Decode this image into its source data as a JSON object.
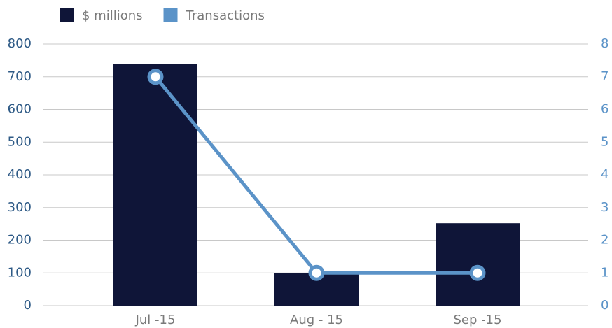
{
  "chart_data": {
    "type": "bar",
    "categories": [
      "Jul -15",
      "Aug - 15",
      "Sep -15"
    ],
    "series": [
      {
        "name": "$ millions",
        "color": "#0f1538",
        "type": "bar",
        "values": [
          738,
          100,
          252
        ]
      },
      {
        "name": "Transactions",
        "color": "#5b93c8",
        "type": "line",
        "axis": "y2",
        "values": [
          7,
          1,
          1
        ]
      }
    ],
    "ylim": [
      0,
      800
    ],
    "yticks": [
      0,
      100,
      200,
      300,
      400,
      500,
      600,
      700,
      800
    ],
    "y2lim": [
      0,
      8
    ],
    "y2ticks": [
      0,
      1,
      2,
      3,
      4,
      5,
      6,
      7,
      8
    ],
    "grid": true,
    "legend": "top"
  }
}
